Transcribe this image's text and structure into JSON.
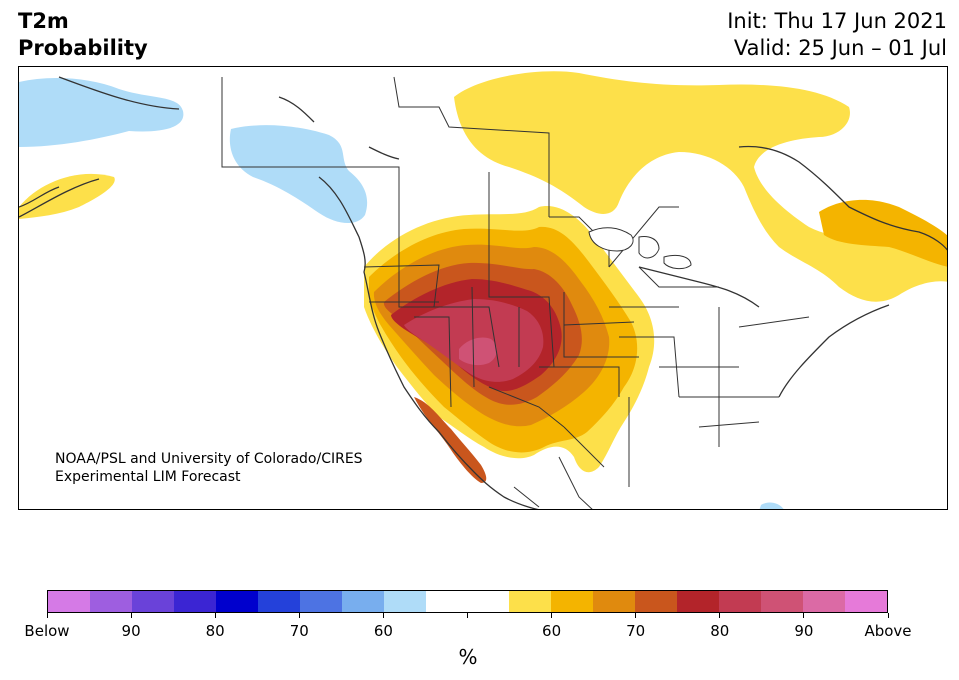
{
  "header": {
    "title_line1": "T2m",
    "title_line2": "Probability",
    "init_text": "Init: Thu 17 Jun 2021",
    "valid_text": "Valid: 25 Jun – 01 Jul"
  },
  "credit": {
    "line1": "NOAA/PSL and University of Colorado/CIRES",
    "line2": "Experimental LIM Forecast"
  },
  "legend": {
    "colors": [
      "#d57ae6",
      "#9e5ee0",
      "#6a42d9",
      "#3b25d3",
      "#0000cd",
      "#2441da",
      "#4d73e3",
      "#78aeee",
      "#afdcf8",
      "#ffffff",
      "#ffffff",
      "#fde04a",
      "#f4b400",
      "#e08a0e",
      "#c9561d",
      "#b3242a",
      "#c23b52",
      "#cf5275",
      "#db6aa5",
      "#e67ad9"
    ],
    "tick_labels": [
      "Below",
      "90",
      "80",
      "70",
      "60",
      "",
      "60",
      "70",
      "80",
      "90",
      "Above"
    ],
    "unit": "%"
  },
  "map_colors": {
    "cool_60": "#afdcf8",
    "warm_60": "#fde04a",
    "warm_65": "#f4b400",
    "warm_70": "#e08a0e",
    "warm_75": "#c9561d",
    "warm_80": "#b3242a",
    "warm_85": "#c23b52",
    "warm_90": "#cf5275",
    "border": "#333333"
  }
}
